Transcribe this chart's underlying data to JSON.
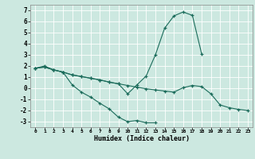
{
  "xlabel": "Humidex (Indice chaleur)",
  "bg_color": "#cce8e0",
  "grid_color": "#ffffff",
  "line_color": "#1a6b5a",
  "xlim": [
    -0.5,
    23.5
  ],
  "ylim": [
    -3.5,
    7.5
  ],
  "xticks": [
    0,
    1,
    2,
    3,
    4,
    5,
    6,
    7,
    8,
    9,
    10,
    11,
    12,
    13,
    14,
    15,
    16,
    17,
    18,
    19,
    20,
    21,
    22,
    23
  ],
  "yticks": [
    -3,
    -2,
    -1,
    0,
    1,
    2,
    3,
    4,
    5,
    6,
    7
  ],
  "line1_x": [
    0,
    1,
    2,
    3,
    4,
    5,
    6,
    7,
    8,
    9,
    10,
    11,
    12,
    13
  ],
  "line1_y": [
    1.8,
    2.0,
    1.65,
    1.45,
    0.3,
    -0.35,
    -0.8,
    -1.35,
    -1.85,
    -2.6,
    -3.0,
    -2.9,
    -3.1,
    -3.1
  ],
  "line2_x": [
    0,
    1,
    2,
    3,
    4,
    5,
    6,
    7,
    8,
    9,
    10,
    11,
    12,
    13,
    14,
    15,
    16,
    17,
    18
  ],
  "line2_y": [
    1.8,
    1.9,
    1.65,
    1.45,
    1.2,
    1.05,
    0.9,
    0.75,
    0.55,
    0.4,
    -0.5,
    0.3,
    1.1,
    3.0,
    5.4,
    6.5,
    6.85,
    6.55,
    3.1
  ],
  "line3_x": [
    0,
    1,
    2,
    3,
    4,
    5,
    6,
    7,
    8,
    9,
    10,
    11,
    12,
    13,
    14,
    15,
    16,
    17,
    18,
    19,
    20,
    21,
    22,
    23
  ],
  "line3_y": [
    1.8,
    1.9,
    1.65,
    1.45,
    1.2,
    1.05,
    0.9,
    0.75,
    0.55,
    0.4,
    0.25,
    0.1,
    -0.05,
    -0.15,
    -0.25,
    -0.35,
    0.05,
    0.25,
    0.15,
    -0.5,
    -1.5,
    -1.75,
    -1.9,
    -2.0
  ]
}
